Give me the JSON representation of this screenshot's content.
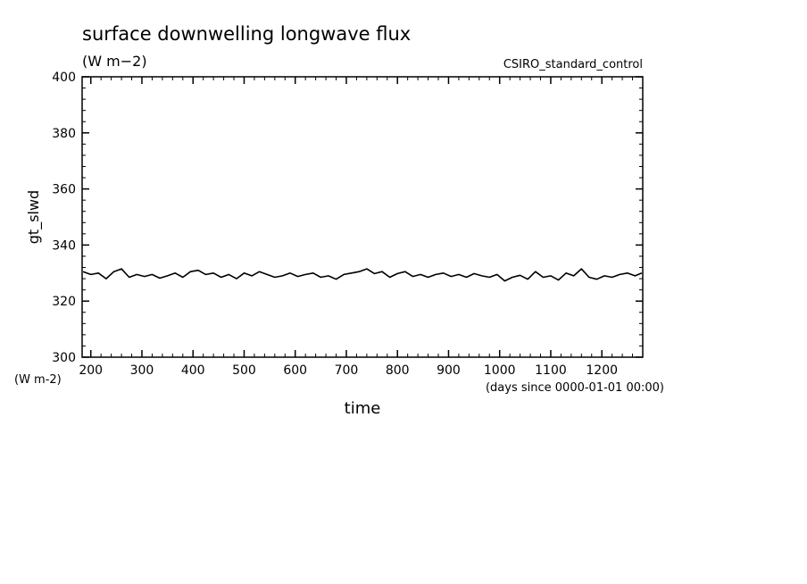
{
  "chart_data": {
    "type": "line",
    "title": "surface downwelling longwave flux",
    "subtitle": "(W m−2)",
    "dataset_label": "CSIRO_standard_control",
    "ylabel": "gt_slwd",
    "y_units": "(W m-2)",
    "xlabel": "time",
    "x_units": "(days since 0000-01-01 00:00)",
    "xlim": [
      183,
      1280
    ],
    "ylim": [
      300,
      400
    ],
    "x_ticks": [
      200,
      300,
      400,
      500,
      600,
      700,
      800,
      900,
      1000,
      1100,
      1200
    ],
    "y_ticks": [
      300,
      320,
      340,
      360,
      380,
      400
    ],
    "x_tick_labels": [
      "200",
      "300",
      "400",
      "500",
      "600",
      "700",
      "800",
      "900",
      "1000",
      "1100",
      "1200"
    ],
    "y_tick_labels": [
      "300",
      "320",
      "340",
      "360",
      "380",
      "400"
    ],
    "grid": false,
    "series": [
      {
        "x": [
          185,
          200,
          215,
          230,
          245,
          260,
          275,
          290,
          305,
          320,
          335,
          350,
          365,
          380,
          395,
          410,
          425,
          440,
          455,
          470,
          485,
          500,
          515,
          530,
          545,
          560,
          575,
          590,
          605,
          620,
          635,
          650,
          665,
          680,
          695,
          710,
          725,
          740,
          755,
          770,
          785,
          800,
          815,
          830,
          845,
          860,
          875,
          890,
          905,
          920,
          935,
          950,
          965,
          980,
          995,
          1010,
          1025,
          1040,
          1055,
          1070,
          1085,
          1100,
          1115,
          1130,
          1145,
          1160,
          1175,
          1190,
          1205,
          1220,
          1235,
          1250,
          1265,
          1278
        ],
        "values": [
          330.5,
          329.5,
          330.0,
          328.0,
          330.5,
          331.5,
          328.5,
          329.5,
          328.8,
          329.5,
          328.2,
          329.0,
          330.0,
          328.5,
          330.5,
          331.0,
          329.5,
          330.0,
          328.5,
          329.5,
          328.0,
          330.0,
          329.0,
          330.5,
          329.5,
          328.5,
          329.0,
          330.0,
          328.8,
          329.5,
          330.0,
          328.5,
          329.0,
          327.8,
          329.5,
          330.0,
          330.5,
          331.5,
          329.8,
          330.5,
          328.5,
          329.8,
          330.5,
          328.8,
          329.5,
          328.5,
          329.5,
          330.0,
          328.8,
          329.5,
          328.5,
          329.8,
          329.0,
          328.5,
          329.5,
          327.2,
          328.5,
          329.2,
          327.8,
          330.5,
          328.5,
          329.0,
          327.5,
          330.0,
          329.0,
          331.5,
          328.5,
          327.8,
          329.0,
          328.5,
          329.5,
          330.0,
          329.0,
          330.0
        ]
      }
    ]
  }
}
